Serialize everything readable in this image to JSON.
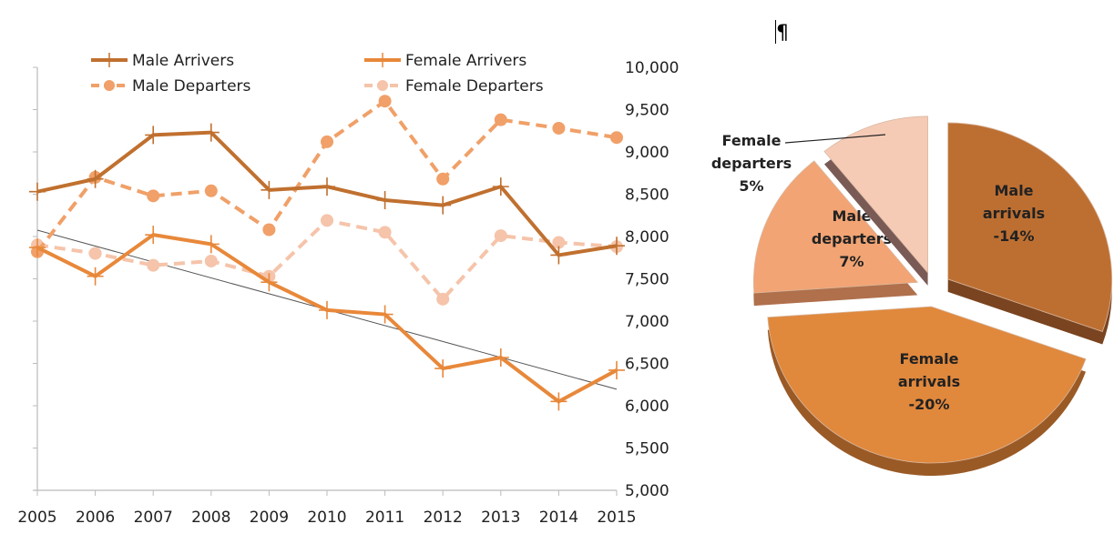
{
  "pilcrow": "¶",
  "chart_data": [
    {
      "type": "line",
      "x": [
        2005,
        2006,
        2007,
        2008,
        2009,
        2010,
        2011,
        2012,
        2013,
        2014,
        2015
      ],
      "ylim": [
        5000,
        10000
      ],
      "yticks": [
        "5,000",
        "5,500",
        "6,000",
        "6,500",
        "7,000",
        "7,500",
        "8,000",
        "8,500",
        "9,000",
        "9,500",
        "10,000"
      ],
      "ytick_values": [
        5000,
        5500,
        6000,
        6500,
        7000,
        7500,
        8000,
        8500,
        9000,
        9500,
        10000
      ],
      "y_axis_position": "right",
      "legend_placement": "top",
      "grid": false,
      "series": [
        {
          "name": "Male Arrivers",
          "color": "#c0702f",
          "style": "solid",
          "marker": "plus",
          "values": [
            8530,
            8680,
            9200,
            9230,
            8550,
            8590,
            8430,
            8370,
            8590,
            7780,
            7890
          ]
        },
        {
          "name": "Female Arrivers",
          "color": "#e8883a",
          "style": "solid",
          "marker": "plus",
          "values": [
            7870,
            7530,
            8020,
            7910,
            7460,
            7130,
            7080,
            6440,
            6570,
            6050,
            6420
          ]
        },
        {
          "name": "Male Departers",
          "color": "#f0a068",
          "style": "dashed",
          "marker": "circle",
          "values": [
            7820,
            8700,
            8480,
            8540,
            8080,
            9120,
            9600,
            8680,
            9380,
            9280,
            9170
          ]
        },
        {
          "name": "Female Departers",
          "color": "#f5c4aa",
          "style": "dashed",
          "marker": "circle",
          "values": [
            7900,
            7800,
            7660,
            7710,
            7530,
            8190,
            8050,
            7260,
            8010,
            7930,
            7880
          ]
        }
      ],
      "trendline": {
        "series": "Female Arrivers",
        "color": "#555555",
        "start": [
          2005,
          8075
        ],
        "end": [
          2015,
          6195
        ]
      }
    },
    {
      "type": "pie",
      "slices": [
        {
          "name": "Male arrivals",
          "label_lines": [
            "Male",
            "arrivals",
            "-14%"
          ],
          "value": -14,
          "color": "#bd6f32",
          "side": "#7a4420"
        },
        {
          "name": "Female arrivals",
          "label_lines": [
            "Female",
            "arrivals",
            "-20%"
          ],
          "value": -20,
          "color": "#e0883c",
          "side": "#9a5a26"
        },
        {
          "name": "Male departers",
          "label_lines": [
            "Male",
            "departers",
            "7%"
          ],
          "value": 7,
          "color": "#f2a474",
          "side": "#b0704c"
        },
        {
          "name": "Female departers",
          "label_lines": [
            "Female",
            "departers",
            "5%"
          ],
          "value": 5,
          "color": "#f6cbb6",
          "side": "#7a5a55"
        }
      ]
    }
  ]
}
